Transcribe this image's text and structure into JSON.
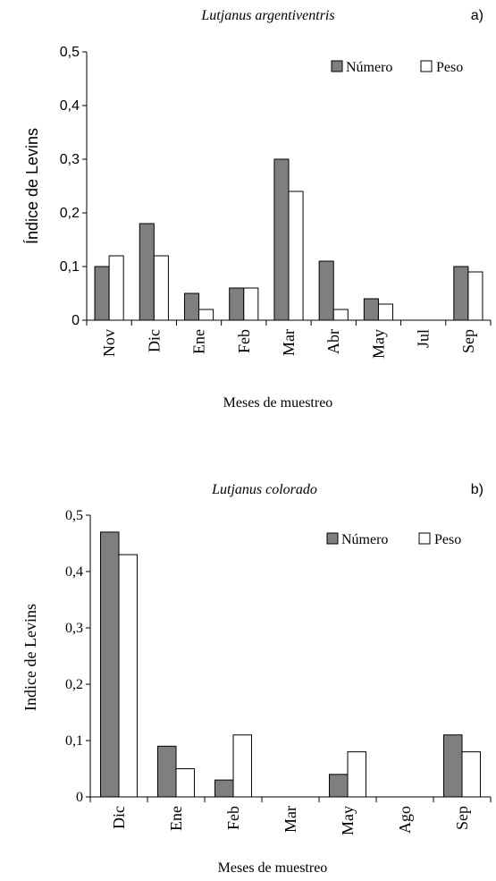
{
  "colors": {
    "numero": "#7f7f7f",
    "peso": "#ffffff",
    "stroke": "#000000"
  },
  "chart_data": [
    {
      "type": "bar",
      "title": "Lutjanus argentiventris",
      "panel_label": "a)",
      "xlabel": "Meses de muestreo",
      "ylabel": "Índice de Levins",
      "ylim": [
        0,
        0.5
      ],
      "yticks": [
        "0",
        "0,1",
        "0,2",
        "0,3",
        "0,4",
        "0,5"
      ],
      "legend_position": "top-right",
      "categories": [
        "Nov",
        "Dic",
        "Ene",
        "Feb",
        "Mar",
        "Abr",
        "May",
        "Jul",
        "Sep"
      ],
      "series": [
        {
          "name": "Número",
          "values": [
            0.1,
            0.18,
            0.05,
            0.06,
            0.3,
            0.11,
            0.04,
            0,
            0.1
          ]
        },
        {
          "name": "Peso",
          "values": [
            0.12,
            0.12,
            0.02,
            0.06,
            0.24,
            0.02,
            0.03,
            0,
            0.09
          ]
        }
      ]
    },
    {
      "type": "bar",
      "title": "Lutjanus colorado",
      "panel_label": "b)",
      "xlabel": "Meses de muestreo",
      "ylabel": "Indice de Levins",
      "ylim": [
        0,
        0.5
      ],
      "yticks": [
        "0",
        "0,1",
        "0,2",
        "0,3",
        "0,4",
        "0,5"
      ],
      "legend_position": "top-right",
      "categories": [
        "Dic",
        "Ene",
        "Feb",
        "Mar",
        "May",
        "Ago",
        "Sep"
      ],
      "series": [
        {
          "name": "Número",
          "values": [
            0.47,
            0.09,
            0.03,
            0,
            0.04,
            0,
            0.11
          ]
        },
        {
          "name": "Peso",
          "values": [
            0.43,
            0.05,
            0.11,
            0,
            0.08,
            0,
            0.08
          ]
        }
      ]
    }
  ]
}
